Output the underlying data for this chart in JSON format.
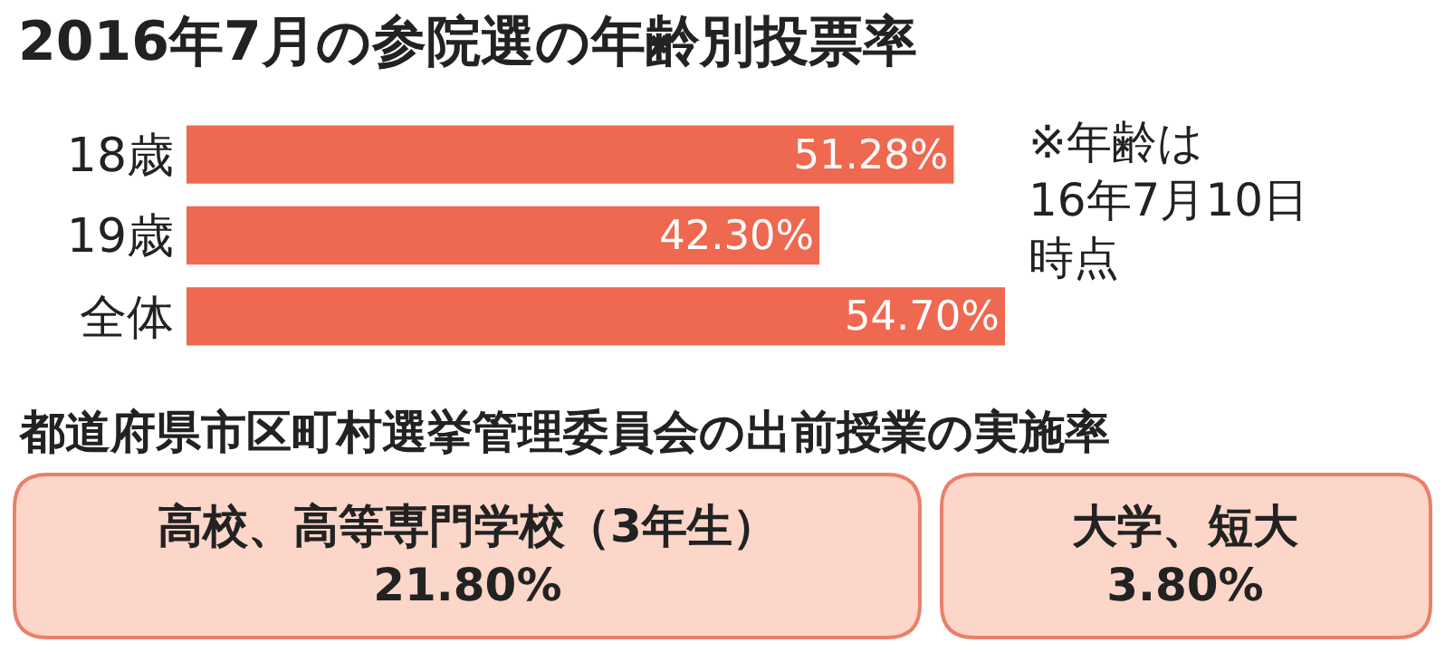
{
  "chart_data": [
    {
      "type": "bar",
      "orientation": "horizontal",
      "title": "2016年7月の参院選の年齢別投票率",
      "categories": [
        "18歳",
        "19歳",
        "全体"
      ],
      "values": [
        51.28,
        42.3,
        54.7
      ],
      "value_labels": [
        "51.28%",
        "42.30%",
        "54.70%"
      ],
      "color": "#ef6850",
      "tick_labels": "y",
      "annotations": [
        "※年齢は",
        "16年7月10日",
        "時点"
      ]
    },
    {
      "type": "other",
      "title": "都道府県市区町村選挙管理委員会の出前授業の実施率",
      "annotations": [
        "高校、高等専門学校（3年生）\n21.80%",
        "大学、短大\n3.80%"
      ]
    }
  ]
}
